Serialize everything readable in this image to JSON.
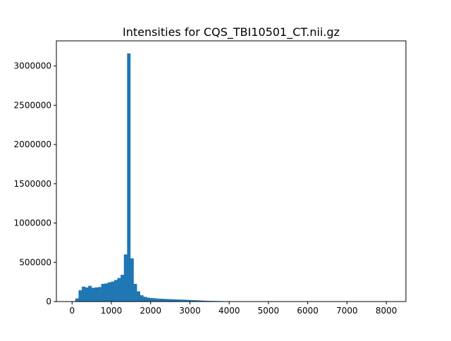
{
  "chart_data": {
    "type": "bar",
    "title": "Intensities for CQS_TBI10501_CT.nii.gz",
    "xlabel": "",
    "ylabel": "",
    "xlim": [
      -400,
      8500
    ],
    "ylim": [
      0,
      3320000
    ],
    "xticks": [
      0,
      1000,
      2000,
      3000,
      4000,
      5000,
      6000,
      7000,
      8000
    ],
    "yticks": [
      0,
      500000,
      1000000,
      1500000,
      2000000,
      2500000,
      3000000
    ],
    "bar_color": "#1f77b4",
    "bin_edges": [
      0,
      82.4,
      164.8,
      247.2,
      329.6,
      412.0,
      494.4,
      576.8,
      659.2,
      741.6,
      824.0,
      906.4,
      988.8,
      1071.2,
      1153.6,
      1236.0,
      1318.4,
      1400.8,
      1483.2,
      1565.6,
      1648.0,
      1730.4,
      1812.8,
      1895.2,
      1977.6,
      2060.0,
      2142.4,
      2224.8,
      2307.2,
      2389.6,
      2472.0,
      2554.4,
      2636.8,
      2719.2,
      2801.6,
      2884.0,
      2966.4,
      3048.8,
      3131.2,
      3213.6,
      3296.0,
      3378.4,
      3460.8,
      3543.2,
      3625.6,
      3708.0,
      3790.4,
      3872.8,
      3955.2,
      4037.6,
      4120.0,
      4202.4,
      4284.8,
      4367.2,
      4449.6,
      4532.0,
      4614.4,
      4696.8,
      4779.2,
      4861.6,
      4944.0,
      5026.4,
      5108.8,
      5191.2,
      5273.6,
      5356.0,
      5438.4,
      5520.8,
      5603.2,
      5685.6,
      5768.0,
      5850.4,
      5932.8,
      6015.2,
      6097.6,
      6180.0,
      6262.4,
      6344.8,
      6427.2,
      6509.6,
      6592.0,
      6674.4,
      6756.8,
      6839.2,
      6921.6,
      7004.0,
      7086.4,
      7168.8,
      7251.2,
      7333.6,
      7416.0,
      7498.4,
      7580.8,
      7663.2,
      7745.6,
      7828.0,
      7910.4,
      7992.8,
      8075.2,
      8157.6,
      8240.0
    ],
    "values": [
      5000,
      40000,
      145000,
      190000,
      180000,
      200000,
      175000,
      180000,
      185000,
      225000,
      230000,
      245000,
      255000,
      275000,
      300000,
      340000,
      600000,
      3160000,
      550000,
      225000,
      130000,
      80000,
      60000,
      50000,
      45000,
      42000,
      38000,
      36000,
      34000,
      32000,
      30000,
      28000,
      26000,
      25000,
      24000,
      22000,
      20000,
      18000,
      16000,
      14000,
      12000,
      10000,
      9000,
      8000,
      7000,
      6000,
      5000,
      4000,
      3000,
      2500,
      2000,
      1500,
      1200,
      1000,
      900,
      800,
      700,
      600,
      500,
      400,
      350,
      300,
      250,
      200,
      150,
      120,
      100,
      90,
      80,
      70,
      60,
      50,
      40,
      30,
      25,
      20,
      15,
      10,
      8,
      6,
      5,
      4,
      3,
      2,
      2,
      1,
      1,
      1,
      1,
      1,
      1,
      1,
      1,
      1,
      1,
      1,
      1,
      1,
      1,
      1
    ]
  }
}
